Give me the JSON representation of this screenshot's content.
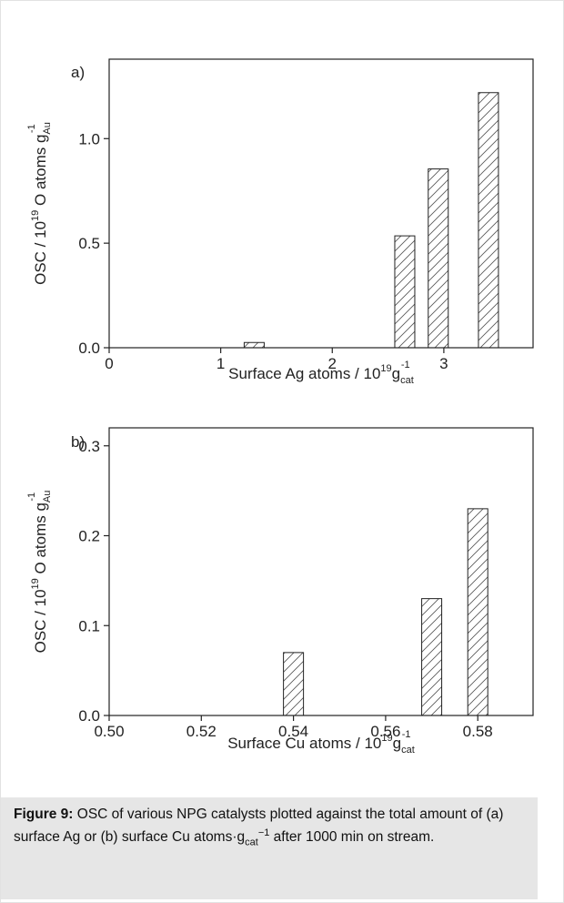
{
  "chart_data": [
    {
      "type": "bar",
      "panel_label": "a)",
      "x": [
        1.3,
        2.65,
        2.95,
        3.4
      ],
      "values": [
        0.025,
        0.535,
        0.855,
        1.22
      ],
      "xlim": [
        0,
        3.8
      ],
      "ylim": [
        0,
        1.38
      ],
      "xticks": [
        "0",
        "1",
        "2",
        "3"
      ],
      "yticks": [
        "0.0",
        "0.5",
        "1.0"
      ],
      "xlabel": "Surface Ag atoms / 10",
      "xlabel_sup": "19",
      "xlabel_unit": "g",
      "xlabel_sub": "cat",
      "xlabel_exp": "-1",
      "ylabel": "OSC / 10",
      "ylabel_sup": "19",
      "ylabel_mid": " O atoms g",
      "ylabel_sub": "Au",
      "ylabel_exp": "-1",
      "bar_style": "hatched"
    },
    {
      "type": "bar",
      "panel_label": "b)",
      "x": [
        0.54,
        0.57,
        0.58
      ],
      "values": [
        0.07,
        0.13,
        0.23
      ],
      "xlim": [
        0.5,
        0.592
      ],
      "ylim": [
        0,
        0.32
      ],
      "xticks": [
        "0.50",
        "0.52",
        "0.54",
        "0.56",
        "0.58"
      ],
      "yticks": [
        "0.0",
        "0.1",
        "0.2",
        "0.3"
      ],
      "xlabel": "Surface Cu atoms / 10",
      "xlabel_sup": "19",
      "xlabel_unit": "g",
      "xlabel_sub": "cat",
      "xlabel_exp": "-1",
      "ylabel": "OSC / 10",
      "ylabel_sup": "19",
      "ylabel_mid": " O atoms g",
      "ylabel_sub": "Au",
      "ylabel_exp": "-1",
      "bar_style": "hatched"
    }
  ],
  "caption": {
    "label": "Figure 9:",
    "text_1": " OSC of various NPG catalysts plotted against the total amount of (a) surface Ag or (b) surface Cu atoms·g",
    "sub": "cat",
    "sup": "−1",
    "text_2": " after 1000 min on stream."
  }
}
